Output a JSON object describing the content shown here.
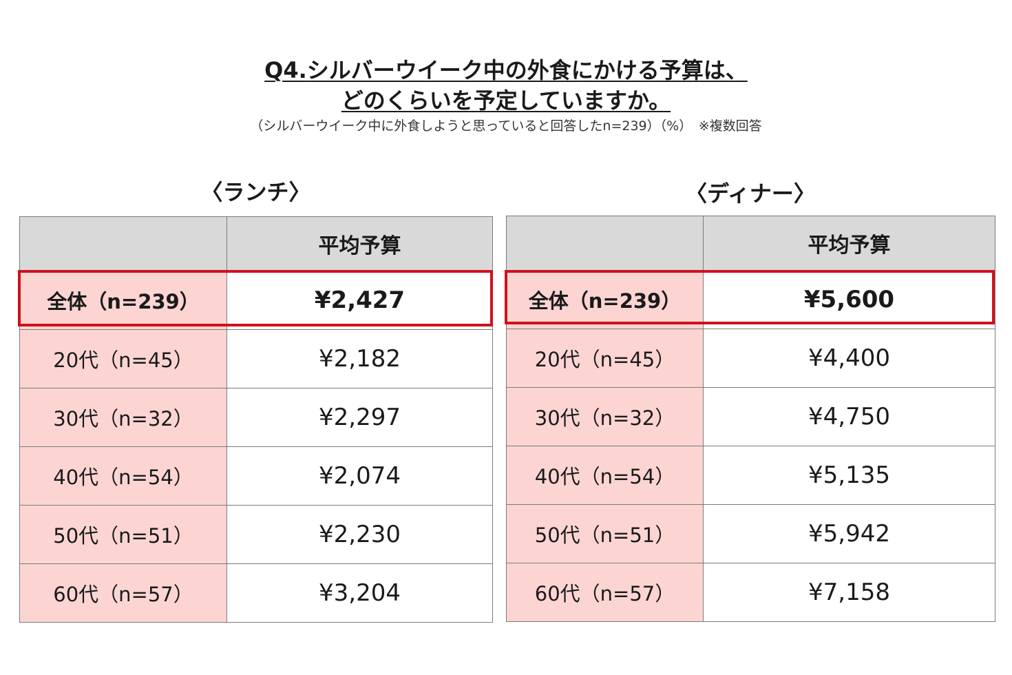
{
  "title": {
    "line1": "Q4.シルバーウイーク中の外食にかける予算は、",
    "line2": "どのくらいを予定していますか。"
  },
  "subtitle": "（シルバーウイーク中に外食しようと思っていると回答したn=239）（%）　※複数回答",
  "colors": {
    "label_bg": "#fcd5d3",
    "header_bg": "#d9d9d9",
    "highlight": "#d0101c"
  },
  "lunch": {
    "heading": "〈ランチ〉",
    "header_value": "平均予算",
    "rows": [
      {
        "label": "全体（n=239）",
        "value": "¥2,427"
      },
      {
        "label": "20代（n=45）",
        "value": "¥2,182"
      },
      {
        "label": "30代（n=32）",
        "value": "¥2,297"
      },
      {
        "label": "40代（n=54）",
        "value": "¥2,074"
      },
      {
        "label": "50代（n=51）",
        "value": "¥2,230"
      },
      {
        "label": "60代（n=57）",
        "value": "¥3,204"
      }
    ]
  },
  "dinner": {
    "heading": "〈ディナー〉",
    "header_value": "平均予算",
    "rows": [
      {
        "label": "全体（n=239）",
        "value": "¥5,600"
      },
      {
        "label": "20代（n=45）",
        "value": "¥4,400"
      },
      {
        "label": "30代（n=32）",
        "value": "¥4,750"
      },
      {
        "label": "40代（n=54）",
        "value": "¥5,135"
      },
      {
        "label": "50代（n=51）",
        "value": "¥5,942"
      },
      {
        "label": "60代（n=57）",
        "value": "¥7,158"
      }
    ]
  }
}
